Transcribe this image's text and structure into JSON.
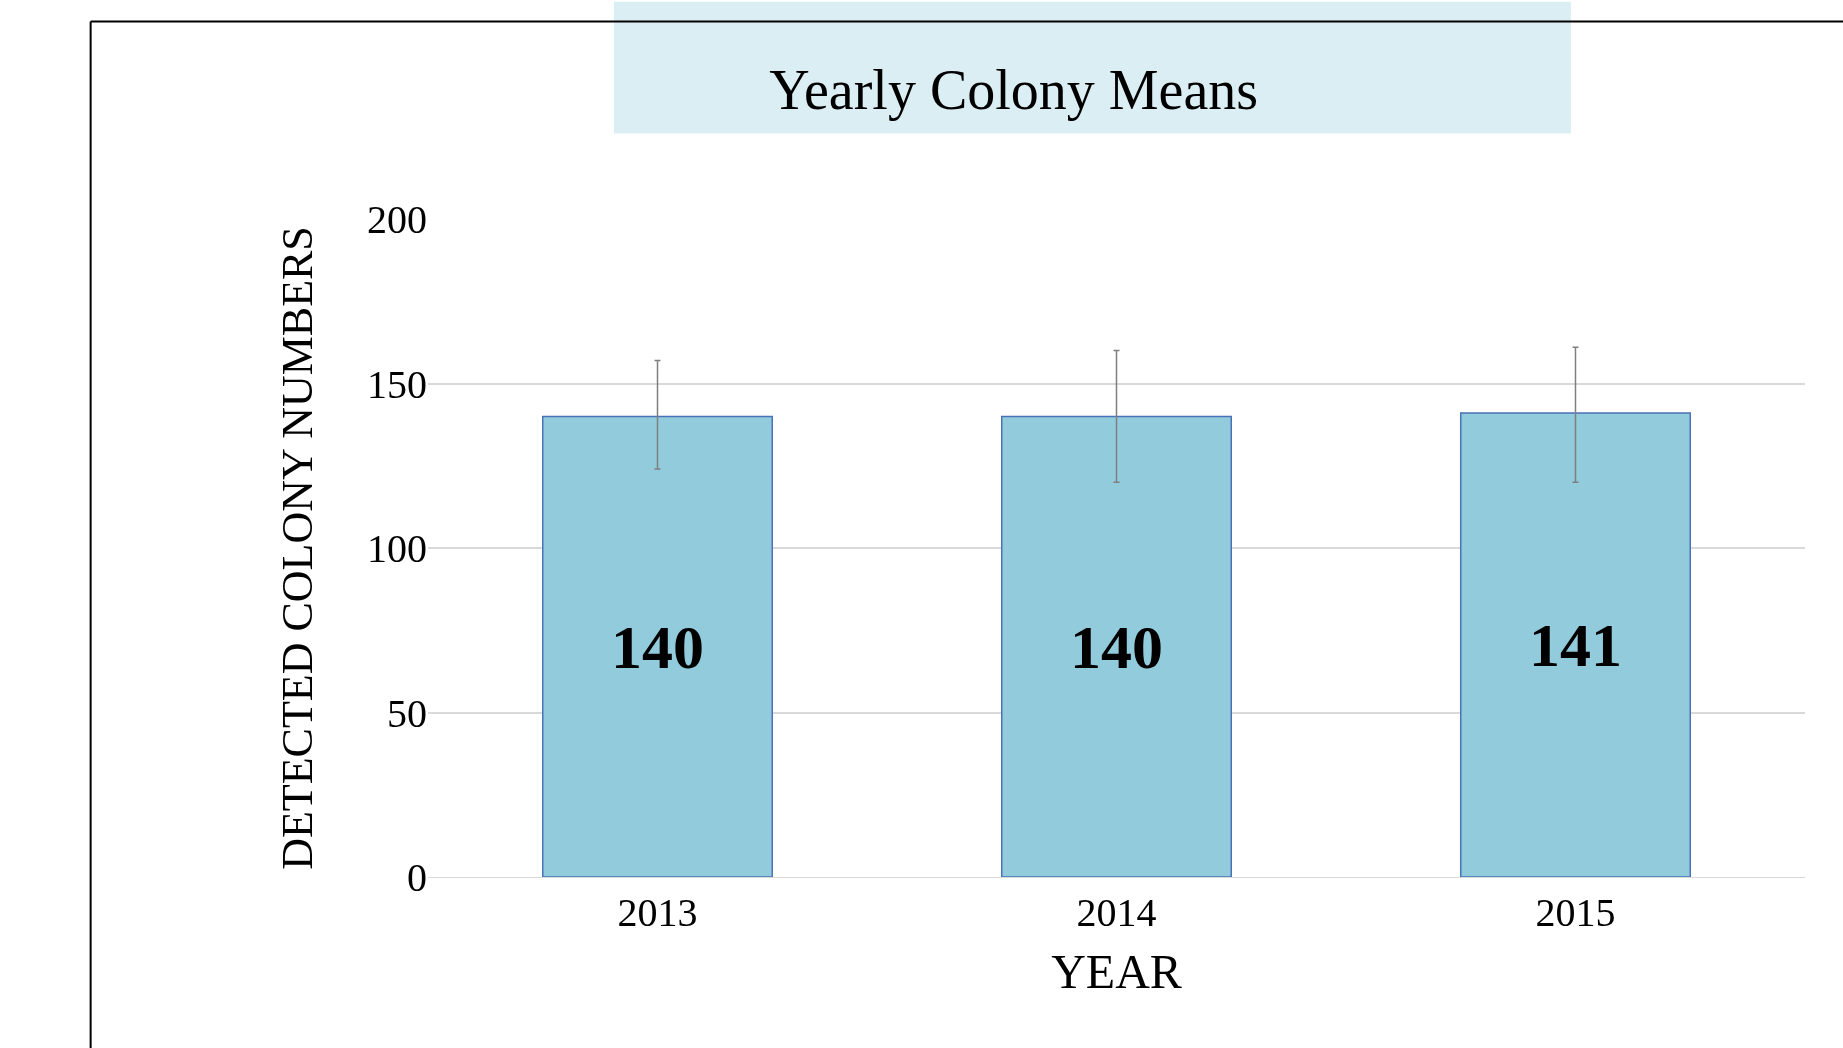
{
  "chart_data": {
    "type": "bar",
    "title": "Yearly Colony Means",
    "xlabel": "YEAR",
    "ylabel": "DETECTED COLONY NUMBERS",
    "categories": [
      "2013",
      "2014",
      "2015"
    ],
    "values": [
      140,
      140,
      141
    ],
    "errors": [
      [
        124,
        157
      ],
      [
        120,
        160
      ],
      [
        120,
        161
      ]
    ],
    "color": "#92cbdc",
    "data_labels": true,
    "ylim": [
      0,
      200
    ],
    "yticks": [
      0,
      50,
      100,
      150,
      200
    ],
    "grid": "y"
  }
}
